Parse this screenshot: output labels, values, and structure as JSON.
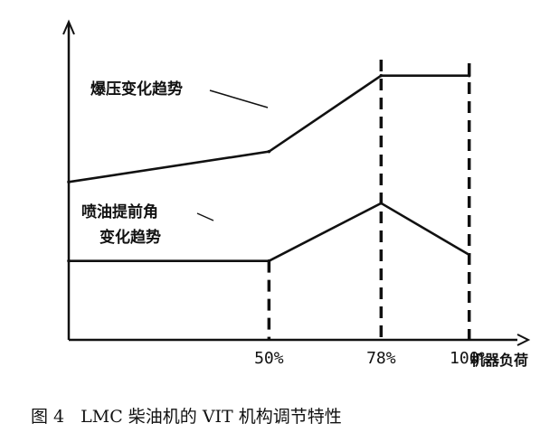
{
  "chart_data": {
    "type": "line",
    "title": "",
    "xlabel": "机器负荷",
    "ylabel": "",
    "x_ticks": [
      "50%",
      "78%",
      "100%"
    ],
    "x_domain": [
      0,
      110
    ],
    "y_domain": [
      0,
      100
    ],
    "grid": false,
    "series": [
      {
        "name": "爆压变化趋势",
        "x": [
          0,
          50,
          78,
          100
        ],
        "y": [
          52,
          62,
          87,
          87
        ]
      },
      {
        "name": "喷油提前角变化趋势",
        "x": [
          0,
          50,
          78,
          100
        ],
        "y": [
          26,
          26,
          45,
          28
        ]
      }
    ],
    "reference_lines": [
      50,
      78,
      100
    ]
  },
  "caption": {
    "number": "图 4",
    "text": "LMC 柴油机的 VIT 机构调节特性"
  }
}
